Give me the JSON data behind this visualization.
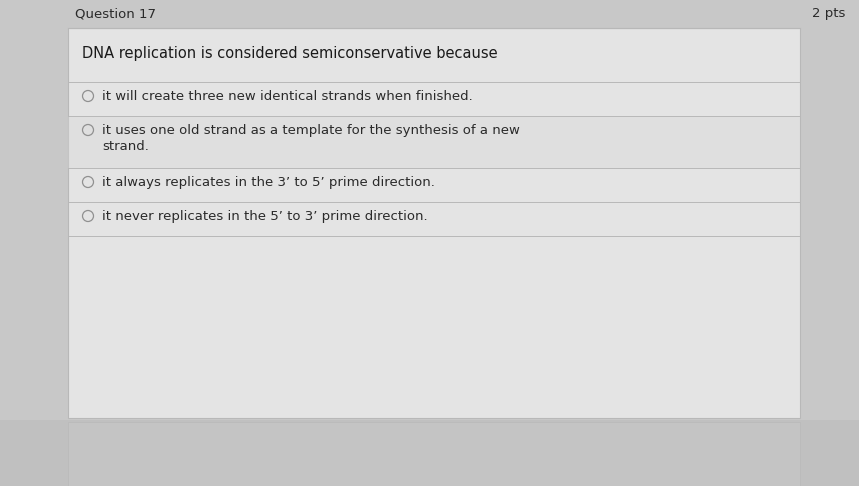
{
  "background_color": "#c8c8c8",
  "card_bg": "#e4e4e4",
  "header_bg": "#c8c8c8",
  "divider_color": "#b8b8b8",
  "text_color": "#1a1a1a",
  "header_text_color": "#2a2a2a",
  "pts_color": "#2a2a2a",
  "option_text_color": "#2a2a2a",
  "circle_color": "#909090",
  "footer_bg": "#c0c0c0",
  "header_text": "Question 17",
  "pts_text": "2 pts",
  "question_text": "DNA replication is considered semiconservative because",
  "options": [
    "it will create three new identical strands when finished.",
    "it uses one old strand as a template for the synthesis of a new\nstrand.",
    "it always replicates in the 3’ to 5’ prime direction.",
    "it never replicates in the 5’ to 3’ prime direction."
  ],
  "header_fontsize": 9.5,
  "pts_fontsize": 9.5,
  "question_fontsize": 10.5,
  "option_fontsize": 9.5,
  "figwidth": 8.59,
  "figheight": 4.86,
  "dpi": 100
}
